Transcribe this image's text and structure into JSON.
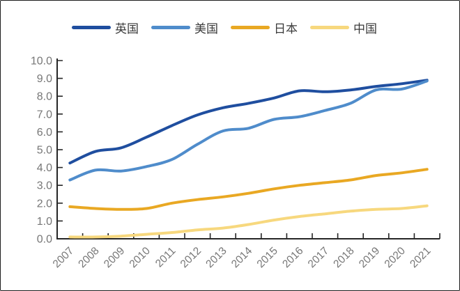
{
  "panel": {
    "background": "#ffffff",
    "border_color": "#1c1c1c",
    "axis_color": "#262626",
    "tick_label_color": "#767676"
  },
  "chart_data": {
    "type": "line",
    "title": "",
    "xlabel": "",
    "ylabel": "",
    "x": [
      "2007",
      "2008",
      "2009",
      "2010",
      "2011",
      "2012",
      "2013",
      "2014",
      "2015",
      "2016",
      "2017",
      "2018",
      "2019",
      "2020",
      "2021"
    ],
    "ylim": [
      0,
      10
    ],
    "ytick_step": 1,
    "ytick_labels": [
      "0.0",
      "1.0",
      "2.0",
      "3.0",
      "4.0",
      "5.0",
      "6.0",
      "7.0",
      "8.0",
      "9.0",
      "10.0"
    ],
    "grid": false,
    "legend_position": "top",
    "line_style": "smooth",
    "series": [
      {
        "key": "uk",
        "name": "英国",
        "color": "#1F4E9F",
        "values": [
          4.25,
          4.9,
          5.1,
          5.7,
          6.35,
          6.95,
          7.35,
          7.6,
          7.9,
          8.3,
          8.25,
          8.35,
          8.55,
          8.7,
          8.9
        ]
      },
      {
        "key": "us",
        "name": "美国",
        "color": "#4F8CCB",
        "values": [
          3.3,
          3.85,
          3.8,
          4.05,
          4.45,
          5.3,
          6.05,
          6.2,
          6.7,
          6.85,
          7.2,
          7.6,
          8.35,
          8.4,
          8.85
        ]
      },
      {
        "key": "japan",
        "name": "日本",
        "color": "#E9A823",
        "values": [
          1.8,
          1.7,
          1.65,
          1.7,
          2.0,
          2.2,
          2.35,
          2.55,
          2.8,
          3.0,
          3.15,
          3.3,
          3.55,
          3.7,
          3.9
        ]
      },
      {
        "key": "china",
        "name": "中国",
        "color": "#F7D87E",
        "values": [
          0.1,
          0.1,
          0.15,
          0.25,
          0.35,
          0.5,
          0.6,
          0.8,
          1.05,
          1.25,
          1.4,
          1.55,
          1.65,
          1.7,
          1.85
        ]
      }
    ]
  }
}
